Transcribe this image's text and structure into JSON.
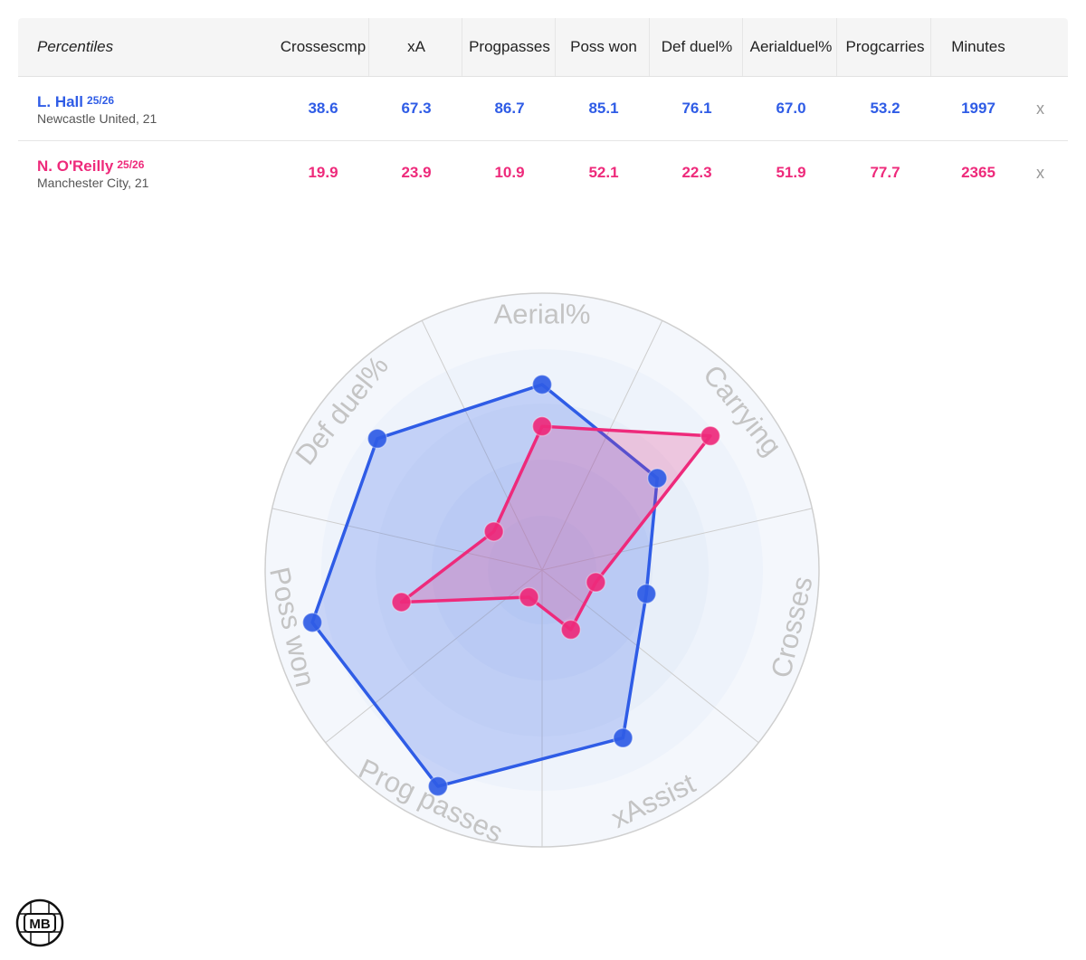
{
  "table": {
    "header_label": "Percentiles",
    "columns": [
      {
        "label": "Crosses cmp",
        "lines": [
          "Crosses",
          "cmp"
        ]
      },
      {
        "label": "xA",
        "lines": [
          "xA"
        ]
      },
      {
        "label": "Prog passes",
        "lines": [
          "Prog",
          "passes"
        ]
      },
      {
        "label": "Poss won",
        "lines": [
          "Poss won"
        ]
      },
      {
        "label": "Def duel%",
        "lines": [
          "Def duel%"
        ]
      },
      {
        "label": "Aerial duel%",
        "lines": [
          "Aerial",
          "duel%"
        ]
      },
      {
        "label": "Prog carries",
        "lines": [
          "Prog",
          "carries"
        ]
      },
      {
        "label": "Minutes",
        "lines": [
          "Minutes"
        ]
      }
    ],
    "remove_label": "x",
    "players": [
      {
        "name": "L. Hall",
        "season": "25/26",
        "team": "Newcastle United, 21",
        "color": "#2f5ce6",
        "values": [
          "38.6",
          "67.3",
          "86.7",
          "85.1",
          "76.1",
          "67.0",
          "53.2",
          "1997"
        ]
      },
      {
        "name": "N. O'Reilly",
        "season": "25/26",
        "team": "Manchester City, 21",
        "color": "#ee2a7b",
        "values": [
          "19.9",
          "23.9",
          "10.9",
          "52.1",
          "22.3",
          "51.9",
          "77.7",
          "2365"
        ]
      }
    ]
  },
  "chart_data": {
    "type": "radar",
    "axes": [
      "Aerial%",
      "Carrying",
      "Crosses",
      "xAssist",
      "Prog passes",
      "Poss won",
      "Def duel%"
    ],
    "range": [
      0,
      100
    ],
    "grid": true,
    "series": [
      {
        "name": "L. Hall",
        "color": "#2f5ce6",
        "fill": "rgba(47,92,230,0.22)",
        "values": [
          67.0,
          53.2,
          38.6,
          67.3,
          86.7,
          85.1,
          76.1
        ]
      },
      {
        "name": "N. O'Reilly",
        "color": "#ee2a7b",
        "fill": "rgba(238,42,123,0.22)",
        "values": [
          51.9,
          77.7,
          19.9,
          23.9,
          10.9,
          52.1,
          22.3
        ]
      }
    ]
  },
  "logo": {
    "text": "MB"
  }
}
